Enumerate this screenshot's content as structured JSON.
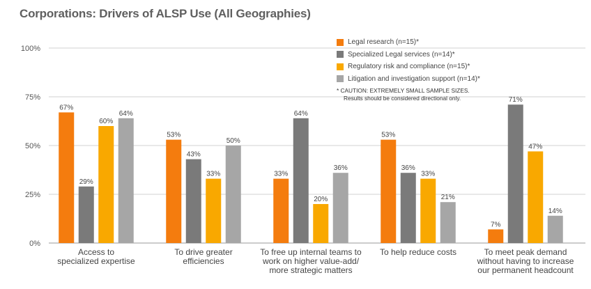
{
  "title": "Corporations: Drivers of ALSP Use (All Geographies)",
  "caution_line1": "* CAUTION: EXTREMELY SMALL SAMPLE SIZES.",
  "caution_line2": "Results should be considered directional only.",
  "chart_data": {
    "type": "bar",
    "title": "Corporations: Drivers of ALSP Use (All Geographies)",
    "categories": [
      [
        "Access to",
        "specialized expertise"
      ],
      [
        "To drive greater",
        "efficiencies"
      ],
      [
        "To free up internal teams to",
        "work on higher value-add/",
        "more strategic matters"
      ],
      [
        "To help reduce costs"
      ],
      [
        "To meet peak demand",
        "without having to increase",
        "our permanent headcount"
      ]
    ],
    "series": [
      {
        "name": "Legal research (n=15)*",
        "color": "#f47c0e",
        "values": [
          67,
          53,
          33,
          53,
          7
        ]
      },
      {
        "name": "Specialized Legal services (n=14)*",
        "color": "#7a7a7a",
        "values": [
          29,
          43,
          64,
          36,
          71
        ]
      },
      {
        "name": "Regulatory risk and compliance (n=15)*",
        "color": "#f9a800",
        "values": [
          60,
          33,
          20,
          33,
          47
        ]
      },
      {
        "name": "Litigation and investigation support (n=14)*",
        "color": "#a6a6a6",
        "values": [
          64,
          50,
          36,
          21,
          14
        ]
      }
    ],
    "yticks": [
      "0%",
      "25%",
      "50%",
      "75%",
      "100%"
    ],
    "ylim": [
      0,
      100
    ],
    "grid": true,
    "legend_position": "top-right"
  }
}
